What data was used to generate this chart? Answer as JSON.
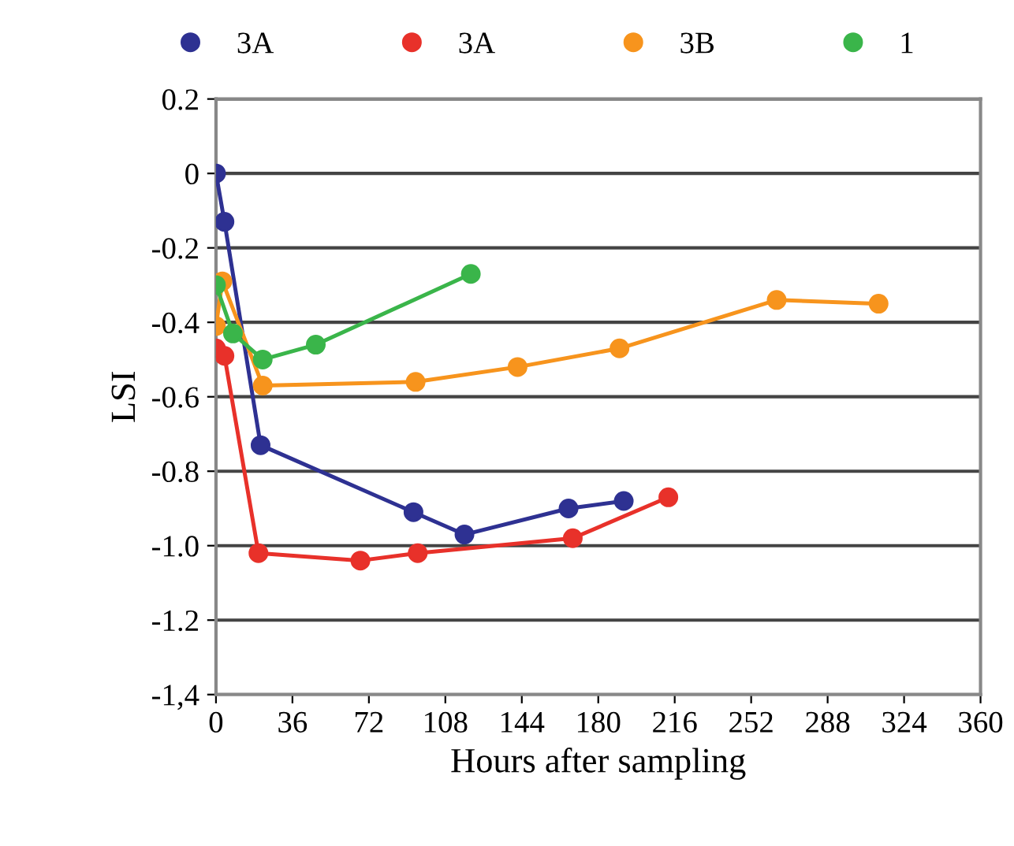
{
  "chart_data": {
    "type": "line",
    "xlabel": "Hours after sampling",
    "ylabel": "LSI",
    "xlim": [
      0,
      360
    ],
    "xticks": [
      0,
      36,
      72,
      108,
      144,
      180,
      216,
      252,
      288,
      324,
      360
    ],
    "ylim": [
      -1.4,
      0.2
    ],
    "yticks": [
      {
        "value": -1.4,
        "label": "-1,4"
      },
      {
        "value": -1.2,
        "label": "-1.2"
      },
      {
        "value": -1.0,
        "label": "-1.0"
      },
      {
        "value": -0.8,
        "label": "-0.8"
      },
      {
        "value": -0.6,
        "label": "-0.6"
      },
      {
        "value": -0.4,
        "label": "-0.4"
      },
      {
        "value": -0.2,
        "label": "-0.2"
      },
      {
        "value": 0,
        "label": "0"
      },
      {
        "value": 0.2,
        "label": "0.2"
      }
    ],
    "grid": "y",
    "legend": "top",
    "marker": "circle",
    "line_style": "solid",
    "series": [
      {
        "name": "3A",
        "color": "#2e3192",
        "x": [
          0,
          4,
          21,
          93,
          117,
          166,
          192
        ],
        "values": [
          0,
          -0.13,
          -0.73,
          -0.91,
          -0.97,
          -0.9,
          -0.88
        ]
      },
      {
        "name": "3A",
        "color": "#e8312a",
        "x": [
          0,
          4,
          20,
          68,
          95,
          168,
          213
        ],
        "values": [
          -0.47,
          -0.49,
          -1.02,
          -1.04,
          -1.02,
          -0.98,
          -0.87
        ]
      },
      {
        "name": "3B",
        "color": "#f7941d",
        "x": [
          0,
          3,
          22,
          94,
          142,
          190,
          264,
          312
        ],
        "values": [
          -0.41,
          -0.29,
          -0.57,
          -0.56,
          -0.52,
          -0.47,
          -0.34,
          -0.35
        ]
      },
      {
        "name": "1",
        "color": "#3ab54a",
        "x": [
          0,
          8,
          22,
          47,
          120
        ],
        "values": [
          -0.3,
          -0.43,
          -0.5,
          -0.46,
          -0.27
        ]
      }
    ]
  }
}
